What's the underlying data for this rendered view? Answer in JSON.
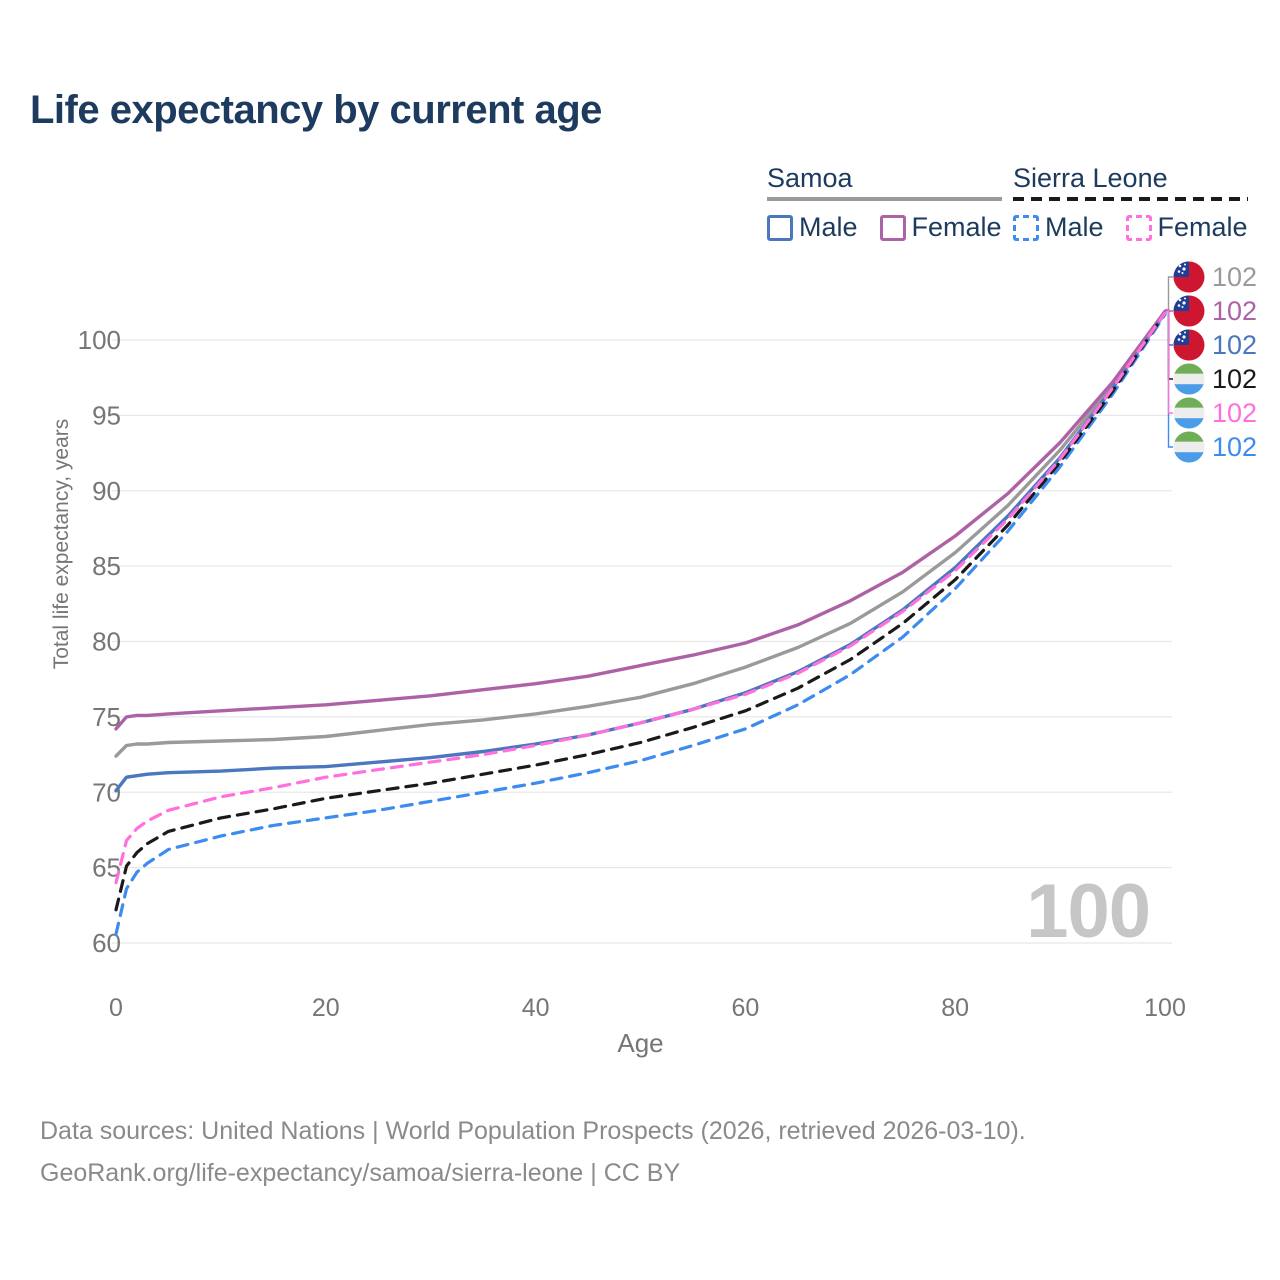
{
  "title": "Life expectancy by current age",
  "legend": {
    "samoa": {
      "label": "Samoa",
      "male_label": "Male",
      "female_label": "Female"
    },
    "sierra_leone": {
      "label": "Sierra Leone",
      "male_label": "Male",
      "female_label": "Female"
    }
  },
  "watermark_age": "100",
  "footer": {
    "line1": "Data sources: United Nations | World Population Prospects (2026, retrieved 2026-03-10).",
    "line2": "GeoRank.org/life-expectancy/samoa/sierra-leone | CC BY"
  },
  "colors": {
    "samoa_total": "#9a9a9a",
    "samoa_female": "#ae62a6",
    "samoa_male": "#4a77bd",
    "sl_total": "#1a1a1a",
    "sl_female": "#ff70dd",
    "sl_male": "#3c8cf0",
    "title_text": "#1d3a5f",
    "axis_text": "#767676",
    "gridline": "#e8e8e8",
    "watermark": "#c6c6c6",
    "footer_text": "#8a8a8a",
    "samoa_flag_red": "#cf1631",
    "samoa_flag_blue": "#1f3e96",
    "sl_flag_green": "#6fae57",
    "sl_flag_white": "#ededed",
    "sl_flag_blue": "#4a9ce8"
  },
  "chart_data": {
    "type": "line",
    "title": "Life expectancy by current age",
    "xlabel": "Age",
    "ylabel": "Total life expectancy, years",
    "x_ticks": [
      0,
      20,
      40,
      60,
      80,
      100
    ],
    "y_ticks": [
      60,
      65,
      70,
      75,
      80,
      85,
      90,
      95,
      100
    ],
    "xlim": [
      0,
      100
    ],
    "ylim": [
      58,
      103
    ],
    "grid": true,
    "legend_position": "top-right",
    "ages": [
      0,
      1,
      2,
      3,
      5,
      10,
      15,
      20,
      25,
      30,
      35,
      40,
      45,
      50,
      55,
      60,
      65,
      70,
      75,
      80,
      85,
      90,
      95,
      100
    ],
    "series": [
      {
        "id": "samoa-total",
        "name": "Samoa (both sexes)",
        "country": "Samoa",
        "sex": "total",
        "color": "#9a9a9a",
        "dashed": false,
        "flag": "samoa",
        "row": 0,
        "end_label": "102",
        "values": [
          72.4,
          73.1,
          73.2,
          73.2,
          73.3,
          73.4,
          73.5,
          73.7,
          74.1,
          74.5,
          74.8,
          75.2,
          75.7,
          76.3,
          77.2,
          78.3,
          79.6,
          81.2,
          83.3,
          85.9,
          89.0,
          92.7,
          97.0,
          101.9
        ]
      },
      {
        "id": "samoa-male",
        "name": "Samoa male",
        "country": "Samoa",
        "sex": "male",
        "color": "#4a77bd",
        "dashed": false,
        "flag": "samoa",
        "row": 2,
        "end_label": "102",
        "values": [
          70.1,
          71.0,
          71.1,
          71.2,
          71.3,
          71.4,
          71.6,
          71.7,
          72.0,
          72.3,
          72.7,
          73.2,
          73.8,
          74.6,
          75.5,
          76.6,
          78.0,
          79.8,
          82.1,
          84.9,
          88.3,
          92.2,
          96.8,
          101.8
        ]
      },
      {
        "id": "samoa-female",
        "name": "Samoa female",
        "country": "Samoa",
        "sex": "female",
        "color": "#ae62a6",
        "dashed": false,
        "flag": "samoa",
        "row": 1,
        "end_label": "102",
        "values": [
          74.2,
          75.0,
          75.1,
          75.1,
          75.2,
          75.4,
          75.6,
          75.8,
          76.1,
          76.4,
          76.8,
          77.2,
          77.7,
          78.4,
          79.1,
          79.9,
          81.1,
          82.7,
          84.6,
          87.0,
          89.8,
          93.2,
          97.2,
          101.9
        ]
      },
      {
        "id": "sierra-leone-male",
        "name": "Sierra Leone male",
        "country": "Sierra Leone",
        "sex": "male",
        "color": "#3c8cf0",
        "dashed": true,
        "flag": "sierra-leone",
        "row": 5,
        "end_label": "102",
        "values": [
          60.6,
          63.6,
          64.7,
          65.3,
          66.2,
          67.1,
          67.8,
          68.3,
          68.8,
          69.4,
          70.0,
          70.6,
          71.3,
          72.1,
          73.1,
          74.2,
          75.8,
          77.8,
          80.3,
          83.5,
          87.3,
          91.6,
          96.4,
          101.7
        ]
      },
      {
        "id": "sierra-leone-total",
        "name": "Sierra Leone (both sexes)",
        "country": "Sierra Leone",
        "sex": "total",
        "color": "#1a1a1a",
        "dashed": true,
        "flag": "sierra-leone",
        "row": 3,
        "end_label": "102",
        "values": [
          62.2,
          65.1,
          66.0,
          66.6,
          67.4,
          68.3,
          68.9,
          69.6,
          70.1,
          70.6,
          71.2,
          71.8,
          72.5,
          73.3,
          74.3,
          75.4,
          76.9,
          78.8,
          81.2,
          84.1,
          87.7,
          91.9,
          96.6,
          101.8
        ]
      },
      {
        "id": "sierra-leone-female",
        "name": "Sierra Leone female",
        "country": "Sierra Leone",
        "sex": "female",
        "color": "#ff70dd",
        "dashed": true,
        "flag": "sierra-leone",
        "row": 4,
        "end_label": "102",
        "values": [
          64.0,
          66.8,
          67.6,
          68.1,
          68.8,
          69.7,
          70.3,
          71.0,
          71.5,
          72.0,
          72.5,
          73.1,
          73.8,
          74.6,
          75.5,
          76.5,
          77.9,
          79.7,
          82.0,
          84.7,
          88.1,
          92.1,
          96.8,
          101.8
        ]
      }
    ]
  }
}
